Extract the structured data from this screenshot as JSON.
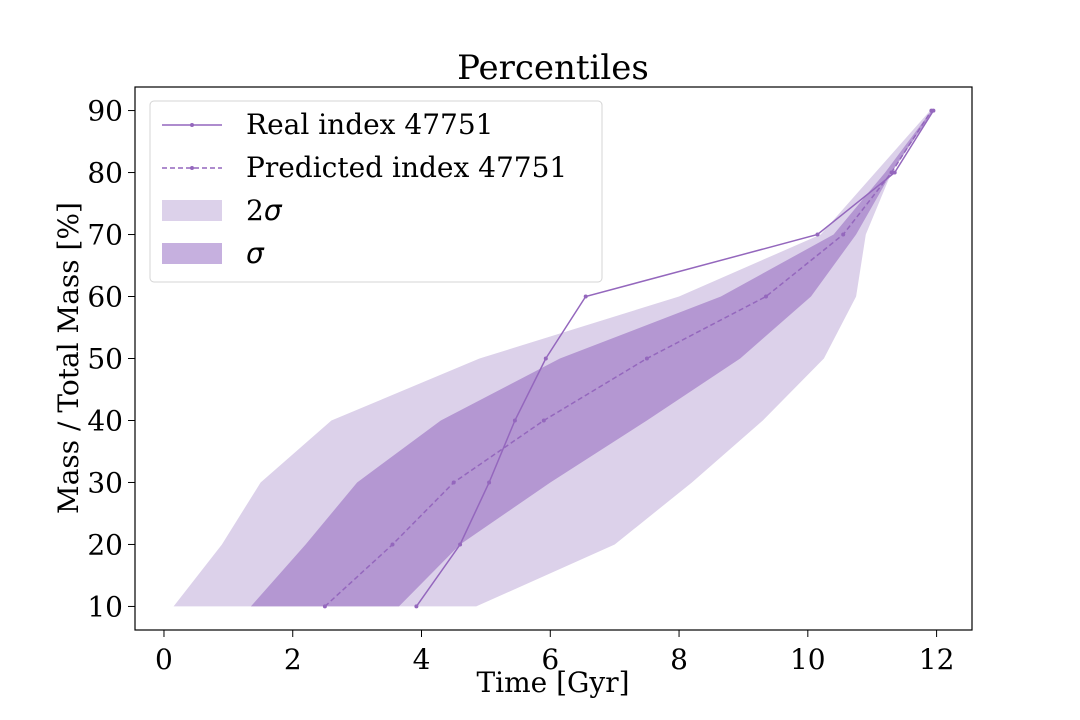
{
  "chart_data": {
    "type": "line",
    "title": "Percentiles",
    "xlabel": "Time [Gyr]",
    "ylabel": "Mass / Total Mass [%]",
    "xlim": [
      -0.45,
      12.55
    ],
    "ylim": [
      6.2,
      93.8
    ],
    "xticks": [
      0,
      2,
      4,
      6,
      8,
      10,
      12
    ],
    "yticks": [
      10,
      20,
      30,
      40,
      50,
      60,
      70,
      80,
      90
    ],
    "grid": false,
    "legend_position": "top-left",
    "colors": {
      "line": "#9467bd",
      "band_2sigma": "#dcd1ea",
      "band_sigma": "#b497d2",
      "legend_sigma_patch": "#c6b0df"
    },
    "series": [
      {
        "name": "Real index 47751",
        "style": "solid",
        "x": [
          3.92,
          4.6,
          5.05,
          5.45,
          5.93,
          6.55,
          10.15,
          11.35,
          11.95
        ],
        "y": [
          10,
          20,
          30,
          40,
          50,
          60,
          70,
          80,
          90
        ]
      },
      {
        "name": "Predicted index 47751",
        "style": "dashed",
        "x": [
          2.5,
          3.55,
          4.5,
          5.9,
          7.5,
          9.35,
          10.55,
          11.3,
          11.92
        ],
        "y": [
          10,
          20,
          30,
          40,
          50,
          60,
          70,
          80,
          90
        ]
      }
    ],
    "bands": [
      {
        "name": "2σ",
        "label_base": "2",
        "label_symbol": "σ",
        "y": [
          10,
          20,
          30,
          40,
          50,
          60,
          70,
          80,
          90
        ],
        "x_lower": [
          0.15,
          0.9,
          1.5,
          2.6,
          4.9,
          8.0,
          10.2,
          11.05,
          11.9
        ],
        "x_upper": [
          4.85,
          7.0,
          8.2,
          9.3,
          10.25,
          10.75,
          10.9,
          11.3,
          11.95
        ]
      },
      {
        "name": "σ",
        "label_base": "",
        "label_symbol": "σ",
        "y": [
          10,
          20,
          30,
          40,
          50,
          60,
          70,
          80,
          90
        ],
        "x_lower": [
          1.35,
          2.2,
          3.0,
          4.3,
          6.15,
          8.65,
          10.4,
          11.2,
          11.92
        ],
        "x_upper": [
          3.65,
          4.6,
          6.0,
          7.5,
          8.95,
          10.05,
          10.75,
          11.3,
          11.95
        ]
      }
    ]
  }
}
